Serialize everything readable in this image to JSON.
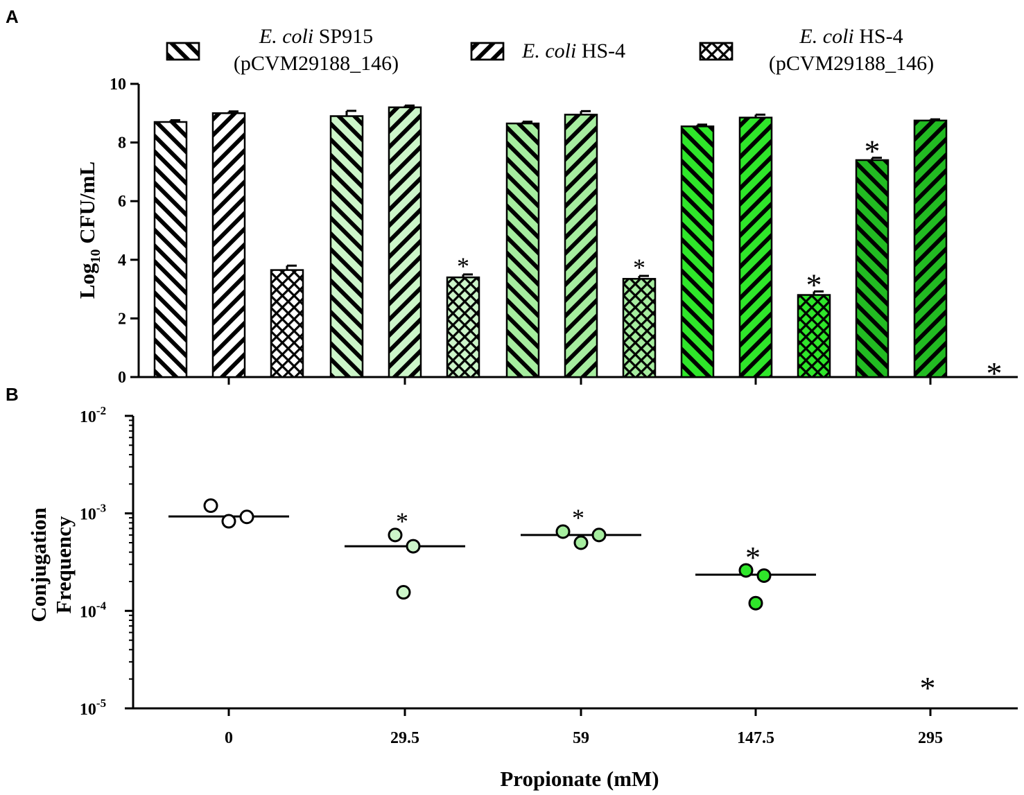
{
  "chart_data": [
    {
      "panel": "A",
      "type": "bar",
      "ylabel_base": "Log",
      "ylabel_sub": "10",
      "ylabel_rest": " CFU/mL",
      "ylim": [
        0,
        10
      ],
      "yticks": [
        "0",
        "2",
        "4",
        "6",
        "8",
        "10"
      ],
      "xlabel": "",
      "categories": [
        "0",
        "29.5",
        "59",
        "147.5",
        "295"
      ],
      "group_colors": [
        "#ffffff",
        "#ccf5c9",
        "#a6ed9f",
        "#2fe62a",
        "#22bb22"
      ],
      "legend": [
        {
          "italic": "E. coli",
          "rest": " SP915",
          "line2": "(pCVM29188_146)"
        },
        {
          "italic": "E. coli",
          "rest": " HS-4",
          "line2": ""
        },
        {
          "italic": "E. coli",
          "rest": " HS-4",
          "line2": "(pCVM29188_146)"
        }
      ],
      "series": [
        {
          "name": "E. coli SP915 (pCVM29188_146)",
          "pattern": "backslash",
          "values": [
            8.7,
            8.9,
            8.65,
            8.55,
            7.4
          ],
          "errors": [
            0.06,
            0.18,
            0.06,
            0.06,
            0.08
          ],
          "stars": [
            "",
            "",
            "",
            "",
            "*"
          ]
        },
        {
          "name": "E. coli HS-4",
          "pattern": "slash",
          "values": [
            9.0,
            9.2,
            8.95,
            8.85,
            8.75
          ],
          "errors": [
            0.06,
            0.06,
            0.12,
            0.1,
            0.04
          ],
          "stars": [
            "",
            "",
            "",
            "",
            ""
          ]
        },
        {
          "name": "E. coli HS-4 (pCVM29188_146)",
          "pattern": "cross",
          "values": [
            3.65,
            3.4,
            3.35,
            2.8,
            0
          ],
          "errors": [
            0.15,
            0.1,
            0.1,
            0.12,
            0
          ],
          "stars": [
            "",
            "*",
            "*",
            "*",
            "*"
          ]
        }
      ]
    },
    {
      "panel": "B",
      "type": "scatter",
      "ylabel_line1": "Conjugation",
      "ylabel_line2": "Frequency",
      "xlabel": "Propionate (mM)",
      "yscale": "log",
      "ylim": [
        1e-05,
        0.01
      ],
      "yticks": [
        {
          "base": "10",
          "exp": "-2"
        },
        {
          "base": "10",
          "exp": "-3"
        },
        {
          "base": "10",
          "exp": "-4"
        },
        {
          "base": "10",
          "exp": "-5"
        }
      ],
      "categories": [
        "0",
        "29.5",
        "59",
        "147.5",
        "295"
      ],
      "groups": [
        {
          "category": "0",
          "points": [
            0.0012,
            0.00083,
            0.00092
          ],
          "median": 0.00093,
          "star": "",
          "color": "#ffffff"
        },
        {
          "category": "29.5",
          "points": [
            0.0006,
            0.00046,
            0.000155
          ],
          "median": 0.00046,
          "star": "*",
          "color": "#ccf5c9"
        },
        {
          "category": "59",
          "points": [
            0.00065,
            0.0005,
            0.0006
          ],
          "median": 0.0006,
          "star": "*",
          "color": "#a6ed9f"
        },
        {
          "category": "147.5",
          "points": [
            0.00026,
            0.00012,
            0.00023
          ],
          "median": 0.000235,
          "star": "*",
          "color": "#2fe62a"
        },
        {
          "category": "295",
          "points": [],
          "median": null,
          "star": "*",
          "color": "#22bb22"
        }
      ]
    }
  ]
}
